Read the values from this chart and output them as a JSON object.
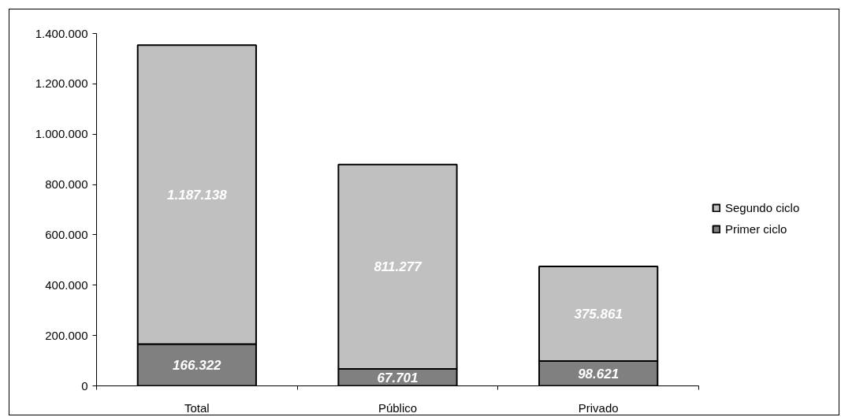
{
  "chart_data": {
    "type": "bar",
    "stacked": true,
    "categories": [
      "Total",
      "Público",
      "Privado"
    ],
    "series": [
      {
        "name": "Primer ciclo",
        "color": "#808080",
        "values": [
          166322,
          67701,
          98621
        ],
        "value_labels": [
          "166.322",
          "67.701",
          "98.621"
        ]
      },
      {
        "name": "Segundo ciclo",
        "color": "#c0c0c0",
        "values": [
          1187138,
          811277,
          375861
        ],
        "value_labels": [
          "1.187.138",
          "811.277",
          "375.861"
        ]
      }
    ],
    "ylim": [
      0,
      1400000
    ],
    "yticks": [
      0,
      {
        "value": 200000,
        "label": "200.000"
      },
      {
        "value": 400000,
        "label": "400.000"
      },
      {
        "value": 600000,
        "label": "600.000"
      },
      {
        "value": 800000,
        "label": "800.000"
      },
      {
        "value": 1000000,
        "label": "1.000.000"
      },
      {
        "value": 1200000,
        "label": "1.200.000"
      },
      {
        "value": 1400000,
        "label": "1.400.000"
      }
    ],
    "legend": "right",
    "grid": false
  }
}
